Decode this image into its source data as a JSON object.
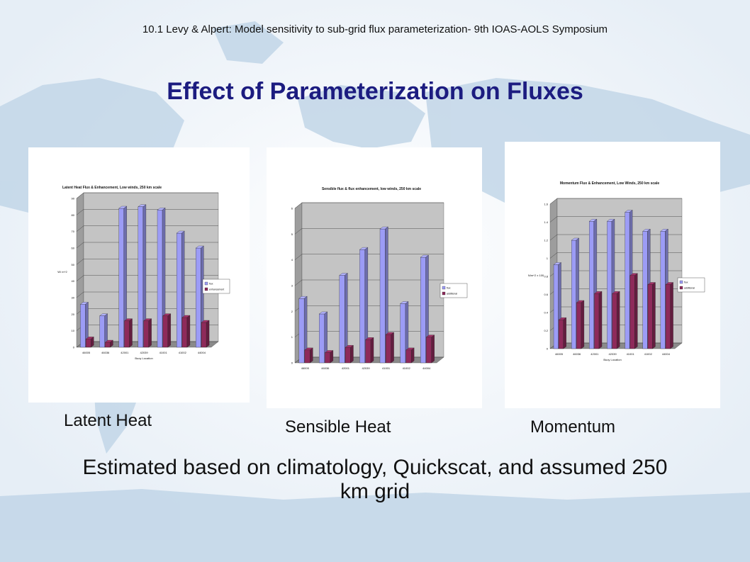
{
  "header": "10.1 Levy & Alpert: Model sensitivity to sub-grid flux parameterization- 9th IOAS-AOLS Symposium",
  "title": "Effect of Parameterization on Fluxes",
  "captions": [
    "Latent Heat",
    "Sensible Heat",
    "Momentum"
  ],
  "footer": "Estimated based on climatology, Quickscat, and assumed 250 km grid",
  "colors": {
    "title": "#1c1c80",
    "series1": "#9c9cf6",
    "series2": "#8e2a5a",
    "plot_bg": "#c4c4c4",
    "map": "#c2d6e8"
  },
  "chart_data": [
    {
      "type": "bar",
      "title": "Latent Heat Flux & Enhancement, Low winds, 250 km scale",
      "xlabel": "Buoy Location",
      "ylabel": "W/ m^2",
      "categories": [
        "46005",
        "46036",
        "42001",
        "42039",
        "41001",
        "41002",
        "44004"
      ],
      "ylim": [
        0,
        90
      ],
      "yticks": [
        "0",
        "10",
        "20",
        "30",
        "40",
        "50",
        "60",
        "70",
        "80",
        "90"
      ],
      "series": [
        {
          "name": "flux",
          "values": [
            26,
            19,
            84,
            85,
            83,
            69,
            60
          ]
        },
        {
          "name": "enhancement",
          "values": [
            5,
            3,
            16,
            16,
            19,
            18,
            15
          ]
        }
      ],
      "legend": "right"
    },
    {
      "type": "bar",
      "title": "Sensible flux & flux enhancement, low winds, 250 km scale",
      "xlabel": "",
      "ylabel": "",
      "categories": [
        "46005",
        "46036",
        "42001",
        "42039",
        "41001",
        "41002",
        "44004"
      ],
      "ylim": [
        0,
        6
      ],
      "yticks": [
        "0",
        "1",
        "2",
        "3",
        "4",
        "5",
        "6"
      ],
      "series": [
        {
          "name": "flux",
          "values": [
            2.5,
            1.9,
            3.4,
            4.4,
            5.2,
            2.3,
            4.1
          ]
        },
        {
          "name": "additional",
          "values": [
            0.5,
            0.4,
            0.6,
            0.9,
            1.1,
            0.5,
            1.0
          ]
        }
      ],
      "legend": "right"
    },
    {
      "type": "bar",
      "title": "Momentum Flux & Enhancement, Low Winds, 250 km scale",
      "xlabel": "Buoy Location",
      "ylabel": "N/m^2 x 100",
      "categories": [
        "46005",
        "46036",
        "42001",
        "42039",
        "41001",
        "41002",
        "44004"
      ],
      "ylim": [
        0,
        1.6
      ],
      "yticks": [
        "0",
        "0.2",
        "0.4",
        "0.6",
        "0.8",
        "1",
        "1.2",
        "1.4",
        "1.6"
      ],
      "series": [
        {
          "name": "flux",
          "values": [
            0.93,
            1.2,
            1.41,
            1.41,
            1.51,
            1.3,
            1.3
          ]
        },
        {
          "name": "additional",
          "values": [
            0.32,
            0.51,
            0.61,
            0.61,
            0.81,
            0.71,
            0.71
          ]
        }
      ],
      "legend": "right"
    }
  ]
}
